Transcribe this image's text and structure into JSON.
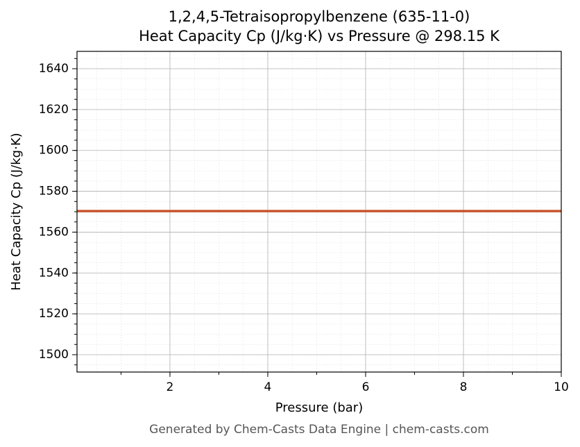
{
  "chart_data": {
    "type": "line",
    "title": "1,2,4,5-Tetraisopropylbenzene (635-11-0)",
    "subtitle": "Heat Capacity Cp (J/kg·K) vs Pressure @ 298.15 K",
    "x_label": "Pressure (bar)",
    "y_label": "Heat Capacity Cp (J/kg·K)",
    "footer": "Generated by Chem-Casts Data Engine | chem-casts.com",
    "x": [
      0.1,
      2,
      4,
      6,
      8,
      10
    ],
    "series": [
      {
        "name": "Cp",
        "color": "#c8552b",
        "values": [
          1570.3,
          1570.3,
          1570.3,
          1570.3,
          1570.3,
          1570.3
        ]
      }
    ],
    "xlim": [
      0.1,
      10
    ],
    "xticks": [
      2,
      4,
      6,
      8,
      10
    ],
    "ylim": [
      1491.5,
      1648.5
    ],
    "yticks": [
      1500,
      1520,
      1540,
      1560,
      1580,
      1600,
      1620,
      1640
    ],
    "grid": true,
    "minor_grid": true
  }
}
